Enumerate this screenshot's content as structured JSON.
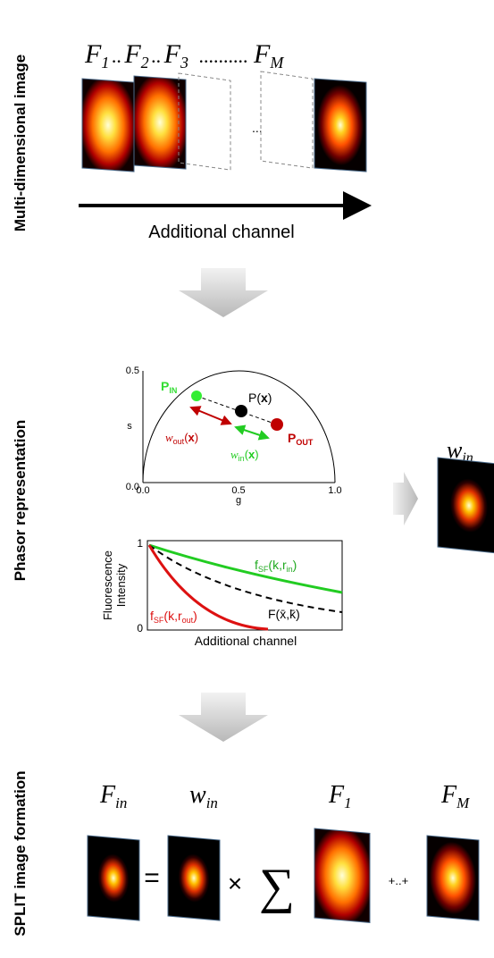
{
  "multidimensional": {
    "section_label": "Multi-dimensional image",
    "frames": [
      {
        "base": "F",
        "sub": "1"
      },
      {
        "base": "F",
        "sub": "2"
      },
      {
        "base": "F",
        "sub": "3"
      },
      {
        "base": "F",
        "sub": "M"
      }
    ],
    "separators": [
      "..",
      "..",
      ".........."
    ],
    "ellipsis": "...",
    "axis_label": "Additional channel"
  },
  "phasor": {
    "section_label": "Phasor representation",
    "plot": {
      "x_label": "g",
      "y_label": "s",
      "x_ticks": [
        "0.0",
        "0.5",
        "1.0"
      ],
      "y_ticks": [
        "0.0",
        "0.5"
      ],
      "p_in": {
        "base": "P",
        "sub": "IN"
      },
      "p": {
        "base": "P(",
        "bold": "x",
        "close": ")"
      },
      "p_out": {
        "base": "P",
        "sub": "OUT"
      },
      "w_out": {
        "base": "w",
        "sub": "out",
        "open": "(",
        "bold": "x",
        "close": ")"
      },
      "w_in": {
        "base": "w",
        "sub": "in",
        "open": "(",
        "bold": "x",
        "close": ")"
      }
    },
    "intensity": {
      "y_label": [
        "Fluorescence",
        "Intensity"
      ],
      "y_ticks": [
        "1",
        "0"
      ],
      "x_label": "Additional channel",
      "curve_in": {
        "base": "f",
        "sub": "SF",
        "args": "(k,r",
        "argsub": "in",
        "close": ")"
      },
      "curve_out": {
        "base": "f",
        "sub": "SF",
        "args": "(k,r",
        "argsub": "out",
        "close": ")"
      },
      "curve_mean": "F(x̄,k̄)"
    },
    "output": {
      "base": "w",
      "sub": "in"
    }
  },
  "formation": {
    "section_label": "SPLIT image formation",
    "labels": [
      {
        "base": "F",
        "sub": "in"
      },
      {
        "base": "w",
        "sub": "in"
      },
      {
        "base": "F",
        "sub": "1"
      },
      {
        "base": "F",
        "sub": "M"
      }
    ],
    "equals": "=",
    "times": "×",
    "sum": "∑",
    "plus": "+..+"
  }
}
